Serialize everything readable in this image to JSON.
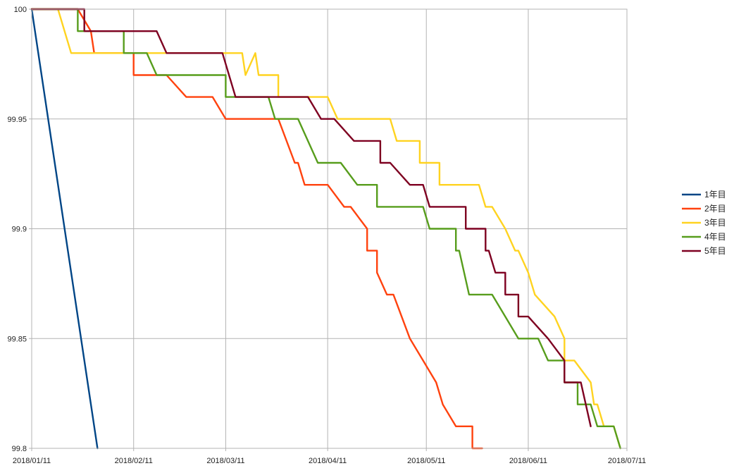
{
  "chart_data": {
    "type": "line",
    "title": "",
    "xlabel": "",
    "ylabel": "",
    "xlim": [
      "2018/01/11",
      "2018/07/11"
    ],
    "ylim": [
      99.8,
      100
    ],
    "x_ticks": [
      "2018/01/11",
      "2018/02/11",
      "2018/03/11",
      "2018/04/11",
      "2018/05/11",
      "2018/06/11",
      "2018/07/11"
    ],
    "y_ticks": [
      "99.8",
      "99.85",
      "99.9",
      "99.95",
      "100"
    ],
    "grid": true,
    "legend_position": "right",
    "series": [
      {
        "name": "1年目",
        "color": "#004586",
        "points": [
          [
            "2018/01/11",
            100
          ],
          [
            "2018/01/31",
            99.8
          ]
        ]
      },
      {
        "name": "2年目",
        "color": "#ff420e",
        "points": [
          [
            "2018/01/11",
            100
          ],
          [
            "2018/01/25",
            100
          ],
          [
            "2018/01/29",
            99.99
          ],
          [
            "2018/01/30",
            99.98
          ],
          [
            "2018/02/11",
            99.98
          ],
          [
            "2018/02/11",
            99.97
          ],
          [
            "2018/02/21",
            99.97
          ],
          [
            "2018/02/27",
            99.96
          ],
          [
            "2018/03/07",
            99.96
          ],
          [
            "2018/03/11",
            99.95
          ],
          [
            "2018/03/27",
            99.95
          ],
          [
            "2018/04/01",
            99.93
          ],
          [
            "2018/04/02",
            99.93
          ],
          [
            "2018/04/04",
            99.92
          ],
          [
            "2018/04/11",
            99.92
          ],
          [
            "2018/04/16",
            99.91
          ],
          [
            "2018/04/18",
            99.91
          ],
          [
            "2018/04/23",
            99.9
          ],
          [
            "2018/04/23",
            99.89
          ],
          [
            "2018/04/26",
            99.89
          ],
          [
            "2018/04/26",
            99.88
          ],
          [
            "2018/04/29",
            99.87
          ],
          [
            "2018/05/01",
            99.87
          ],
          [
            "2018/05/06",
            99.85
          ],
          [
            "2018/05/10",
            99.84
          ],
          [
            "2018/05/14",
            99.83
          ],
          [
            "2018/05/16",
            99.82
          ],
          [
            "2018/05/20",
            99.81
          ],
          [
            "2018/05/25",
            99.81
          ],
          [
            "2018/05/25",
            99.8
          ],
          [
            "2018/05/28",
            99.8
          ]
        ]
      },
      {
        "name": "3年目",
        "color": "#ffd320",
        "points": [
          [
            "2018/01/11",
            100
          ],
          [
            "2018/01/19",
            100
          ],
          [
            "2018/01/23",
            99.98
          ],
          [
            "2018/03/16",
            99.98
          ],
          [
            "2018/03/17",
            99.97
          ],
          [
            "2018/03/20",
            99.98
          ],
          [
            "2018/03/21",
            99.97
          ],
          [
            "2018/03/27",
            99.97
          ],
          [
            "2018/03/27",
            99.96
          ],
          [
            "2018/04/11",
            99.96
          ],
          [
            "2018/04/14",
            99.95
          ],
          [
            "2018/04/30",
            99.95
          ],
          [
            "2018/05/02",
            99.94
          ],
          [
            "2018/05/09",
            99.94
          ],
          [
            "2018/05/09",
            99.93
          ],
          [
            "2018/05/15",
            99.93
          ],
          [
            "2018/05/15",
            99.92
          ],
          [
            "2018/05/27",
            99.92
          ],
          [
            "2018/05/29",
            99.91
          ],
          [
            "2018/05/31",
            99.91
          ],
          [
            "2018/06/04",
            99.9
          ],
          [
            "2018/06/07",
            99.89
          ],
          [
            "2018/06/08",
            99.89
          ],
          [
            "2018/06/11",
            99.88
          ],
          [
            "2018/06/13",
            99.87
          ],
          [
            "2018/06/19",
            99.86
          ],
          [
            "2018/06/22",
            99.85
          ],
          [
            "2018/06/22",
            99.84
          ],
          [
            "2018/06/25",
            99.84
          ],
          [
            "2018/06/30",
            99.83
          ],
          [
            "2018/07/01",
            99.82
          ],
          [
            "2018/07/02",
            99.82
          ],
          [
            "2018/07/04",
            99.81
          ],
          [
            "2018/07/07",
            99.81
          ],
          [
            "2018/07/09",
            99.8
          ]
        ]
      },
      {
        "name": "4年目",
        "color": "#579d1c",
        "points": [
          [
            "2018/01/11",
            100
          ],
          [
            "2018/01/25",
            100
          ],
          [
            "2018/01/25",
            99.99
          ],
          [
            "2018/02/08",
            99.99
          ],
          [
            "2018/02/08",
            99.98
          ],
          [
            "2018/02/15",
            99.98
          ],
          [
            "2018/02/18",
            99.97
          ],
          [
            "2018/03/11",
            99.97
          ],
          [
            "2018/03/11",
            99.96
          ],
          [
            "2018/03/24",
            99.96
          ],
          [
            "2018/03/26",
            99.95
          ],
          [
            "2018/04/02",
            99.95
          ],
          [
            "2018/04/08",
            99.93
          ],
          [
            "2018/04/15",
            99.93
          ],
          [
            "2018/04/20",
            99.92
          ],
          [
            "2018/04/26",
            99.92
          ],
          [
            "2018/04/26",
            99.91
          ],
          [
            "2018/05/10",
            99.91
          ],
          [
            "2018/05/12",
            99.9
          ],
          [
            "2018/05/20",
            99.9
          ],
          [
            "2018/05/20",
            99.89
          ],
          [
            "2018/05/21",
            99.89
          ],
          [
            "2018/05/24",
            99.87
          ],
          [
            "2018/05/31",
            99.87
          ],
          [
            "2018/06/04",
            99.86
          ],
          [
            "2018/06/08",
            99.85
          ],
          [
            "2018/06/14",
            99.85
          ],
          [
            "2018/06/17",
            99.84
          ],
          [
            "2018/06/22",
            99.84
          ],
          [
            "2018/06/22",
            99.83
          ],
          [
            "2018/06/26",
            99.83
          ],
          [
            "2018/06/26",
            99.82
          ],
          [
            "2018/06/30",
            99.82
          ],
          [
            "2018/07/02",
            99.81
          ],
          [
            "2018/07/07",
            99.81
          ],
          [
            "2018/07/09",
            99.8
          ]
        ]
      },
      {
        "name": "5年目",
        "color": "#7e0021",
        "points": [
          [
            "2018/01/11",
            100
          ],
          [
            "2018/01/27",
            100
          ],
          [
            "2018/01/27",
            99.99
          ],
          [
            "2018/02/18",
            99.99
          ],
          [
            "2018/02/21",
            99.98
          ],
          [
            "2018/03/10",
            99.98
          ],
          [
            "2018/03/14",
            99.96
          ],
          [
            "2018/04/05",
            99.96
          ],
          [
            "2018/04/09",
            99.95
          ],
          [
            "2018/04/13",
            99.95
          ],
          [
            "2018/04/19",
            99.94
          ],
          [
            "2018/04/27",
            99.94
          ],
          [
            "2018/04/27",
            99.93
          ],
          [
            "2018/04/30",
            99.93
          ],
          [
            "2018/05/06",
            99.92
          ],
          [
            "2018/05/10",
            99.92
          ],
          [
            "2018/05/12",
            99.91
          ],
          [
            "2018/05/23",
            99.91
          ],
          [
            "2018/05/23",
            99.9
          ],
          [
            "2018/05/29",
            99.9
          ],
          [
            "2018/05/29",
            99.89
          ],
          [
            "2018/05/30",
            99.89
          ],
          [
            "2018/06/01",
            99.88
          ],
          [
            "2018/06/04",
            99.88
          ],
          [
            "2018/06/04",
            99.87
          ],
          [
            "2018/06/08",
            99.87
          ],
          [
            "2018/06/08",
            99.86
          ],
          [
            "2018/06/11",
            99.86
          ],
          [
            "2018/06/17",
            99.85
          ],
          [
            "2018/06/22",
            99.84
          ],
          [
            "2018/06/22",
            99.83
          ],
          [
            "2018/06/27",
            99.83
          ],
          [
            "2018/06/30",
            99.81
          ]
        ]
      }
    ]
  }
}
